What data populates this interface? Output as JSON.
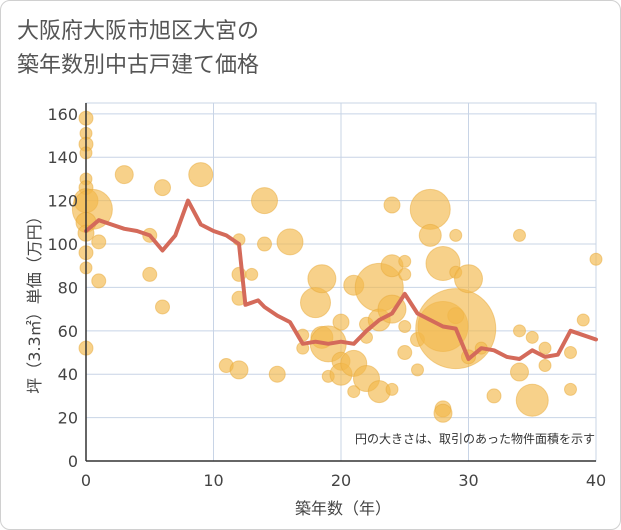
{
  "title": {
    "line1": "大阪府大阪市旭区大宮の",
    "line2": "築年数別中古戸建て価格"
  },
  "chart_data": {
    "type": "scatter",
    "xlabel": "築年数（年）",
    "ylabel": "坪（3.3㎡）単価（万円）",
    "xlim": [
      0,
      40
    ],
    "ylim": [
      0,
      165
    ],
    "xticks": [
      0,
      10,
      20,
      30,
      40
    ],
    "yticks": [
      0,
      20,
      40,
      60,
      80,
      100,
      120,
      140,
      160
    ],
    "grid": true,
    "note": "円の大きさは、取引のあった物件面積を示す",
    "colors": {
      "bubble": "#f2b84b",
      "line": "#d46a5a",
      "grid": "#c8d4e6",
      "axis": "#333333"
    },
    "bubbles": [
      {
        "x": 0,
        "y": 158,
        "s": 7
      },
      {
        "x": 0,
        "y": 151,
        "s": 6
      },
      {
        "x": 0,
        "y": 146,
        "s": 7
      },
      {
        "x": 0,
        "y": 142,
        "s": 6
      },
      {
        "x": 0,
        "y": 130,
        "s": 6
      },
      {
        "x": 0,
        "y": 126,
        "s": 7
      },
      {
        "x": 0,
        "y": 120,
        "s": 12
      },
      {
        "x": 0.5,
        "y": 116,
        "s": 20
      },
      {
        "x": 0,
        "y": 110,
        "s": 10
      },
      {
        "x": 0,
        "y": 105,
        "s": 8
      },
      {
        "x": 0,
        "y": 96,
        "s": 7
      },
      {
        "x": 0,
        "y": 89,
        "s": 6
      },
      {
        "x": 0,
        "y": 52,
        "s": 7
      },
      {
        "x": 1,
        "y": 101,
        "s": 7
      },
      {
        "x": 1,
        "y": 83,
        "s": 7
      },
      {
        "x": 3,
        "y": 132,
        "s": 9
      },
      {
        "x": 5,
        "y": 104,
        "s": 7
      },
      {
        "x": 5,
        "y": 86,
        "s": 7
      },
      {
        "x": 6,
        "y": 126,
        "s": 8
      },
      {
        "x": 6,
        "y": 71,
        "s": 7
      },
      {
        "x": 9,
        "y": 132,
        "s": 12
      },
      {
        "x": 11,
        "y": 44,
        "s": 7
      },
      {
        "x": 12,
        "y": 102,
        "s": 6
      },
      {
        "x": 12,
        "y": 86,
        "s": 7
      },
      {
        "x": 12,
        "y": 75,
        "s": 7
      },
      {
        "x": 12,
        "y": 42,
        "s": 9
      },
      {
        "x": 13,
        "y": 86,
        "s": 6
      },
      {
        "x": 14,
        "y": 120,
        "s": 13
      },
      {
        "x": 14,
        "y": 100,
        "s": 7
      },
      {
        "x": 15,
        "y": 40,
        "s": 8
      },
      {
        "x": 16,
        "y": 101,
        "s": 13
      },
      {
        "x": 17,
        "y": 58,
        "s": 6
      },
      {
        "x": 17,
        "y": 52,
        "s": 6
      },
      {
        "x": 18,
        "y": 73,
        "s": 15
      },
      {
        "x": 18.5,
        "y": 84,
        "s": 14
      },
      {
        "x": 18.5,
        "y": 57,
        "s": 11
      },
      {
        "x": 19,
        "y": 54,
        "s": 18
      },
      {
        "x": 19,
        "y": 39,
        "s": 6
      },
      {
        "x": 20,
        "y": 64,
        "s": 8
      },
      {
        "x": 20,
        "y": 46,
        "s": 9
      },
      {
        "x": 20,
        "y": 40,
        "s": 11
      },
      {
        "x": 21,
        "y": 81,
        "s": 10
      },
      {
        "x": 21,
        "y": 45,
        "s": 13
      },
      {
        "x": 21,
        "y": 32,
        "s": 6
      },
      {
        "x": 22,
        "y": 63,
        "s": 7
      },
      {
        "x": 22,
        "y": 57,
        "s": 6
      },
      {
        "x": 22,
        "y": 38,
        "s": 13
      },
      {
        "x": 23,
        "y": 80,
        "s": 24
      },
      {
        "x": 23,
        "y": 65,
        "s": 11
      },
      {
        "x": 23,
        "y": 32,
        "s": 11
      },
      {
        "x": 24,
        "y": 118,
        "s": 8
      },
      {
        "x": 24,
        "y": 90,
        "s": 11
      },
      {
        "x": 24,
        "y": 70,
        "s": 14
      },
      {
        "x": 24,
        "y": 33,
        "s": 6
      },
      {
        "x": 25,
        "y": 92,
        "s": 6
      },
      {
        "x": 25,
        "y": 86,
        "s": 6
      },
      {
        "x": 25,
        "y": 62,
        "s": 6
      },
      {
        "x": 25,
        "y": 50,
        "s": 7
      },
      {
        "x": 26,
        "y": 56,
        "s": 7
      },
      {
        "x": 26,
        "y": 42,
        "s": 6
      },
      {
        "x": 27,
        "y": 116,
        "s": 20
      },
      {
        "x": 27,
        "y": 104,
        "s": 11
      },
      {
        "x": 28,
        "y": 91,
        "s": 17
      },
      {
        "x": 28,
        "y": 62,
        "s": 25
      },
      {
        "x": 28,
        "y": 24,
        "s": 8
      },
      {
        "x": 28,
        "y": 22,
        "s": 9
      },
      {
        "x": 29,
        "y": 104,
        "s": 6
      },
      {
        "x": 29,
        "y": 87,
        "s": 6
      },
      {
        "x": 29,
        "y": 67,
        "s": 8
      },
      {
        "x": 29,
        "y": 61,
        "s": 40
      },
      {
        "x": 30,
        "y": 84,
        "s": 14
      },
      {
        "x": 30,
        "y": 48,
        "s": 7
      },
      {
        "x": 31,
        "y": 52,
        "s": 6
      },
      {
        "x": 32,
        "y": 30,
        "s": 7
      },
      {
        "x": 34,
        "y": 104,
        "s": 6
      },
      {
        "x": 34,
        "y": 60,
        "s": 6
      },
      {
        "x": 34,
        "y": 41,
        "s": 9
      },
      {
        "x": 35,
        "y": 57,
        "s": 6
      },
      {
        "x": 35,
        "y": 28,
        "s": 16
      },
      {
        "x": 36,
        "y": 52,
        "s": 6
      },
      {
        "x": 36,
        "y": 44,
        "s": 6
      },
      {
        "x": 38,
        "y": 50,
        "s": 6
      },
      {
        "x": 38,
        "y": 33,
        "s": 6
      },
      {
        "x": 39,
        "y": 65,
        "s": 6
      },
      {
        "x": 40,
        "y": 93,
        "s": 6
      }
    ],
    "line": [
      [
        0,
        106
      ],
      [
        1,
        111
      ],
      [
        2,
        109
      ],
      [
        3,
        107
      ],
      [
        4,
        106
      ],
      [
        5,
        104
      ],
      [
        6,
        97
      ],
      [
        7,
        104
      ],
      [
        8,
        120
      ],
      [
        9,
        109
      ],
      [
        10,
        106
      ],
      [
        11,
        104
      ],
      [
        12,
        100
      ],
      [
        12.5,
        72
      ],
      [
        13.5,
        74
      ],
      [
        14,
        71
      ],
      [
        15,
        67
      ],
      [
        16,
        64
      ],
      [
        17,
        54
      ],
      [
        18,
        55
      ],
      [
        19,
        54
      ],
      [
        20,
        55
      ],
      [
        21,
        54
      ],
      [
        22,
        60
      ],
      [
        23,
        65
      ],
      [
        24,
        68
      ],
      [
        25,
        77
      ],
      [
        26,
        68
      ],
      [
        27,
        65
      ],
      [
        28,
        62
      ],
      [
        29,
        61
      ],
      [
        30,
        47
      ],
      [
        31,
        52
      ],
      [
        32,
        51
      ],
      [
        33,
        48
      ],
      [
        34,
        47
      ],
      [
        35,
        51
      ],
      [
        36,
        48
      ],
      [
        37,
        49
      ],
      [
        38,
        60
      ],
      [
        39,
        58
      ],
      [
        40,
        56
      ]
    ]
  }
}
